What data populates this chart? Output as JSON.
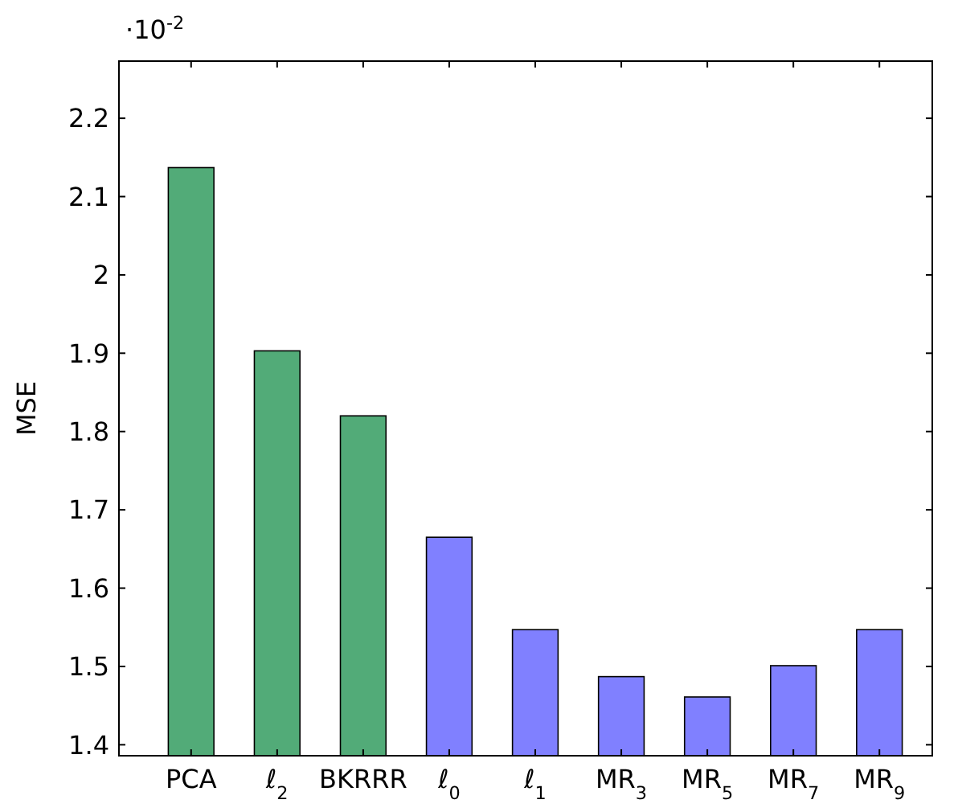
{
  "chart_data": {
    "type": "bar",
    "ylabel": "MSE",
    "categories": [
      "PCA",
      "ℓ$_{2}$",
      "BKRRR",
      "ℓ$_{0}$",
      "ℓ$_{1}$",
      "MR$_{3}$",
      "MR$_{5}$",
      "MR$_{7}$",
      "MR$_{9}$"
    ],
    "values": [
      2.137,
      1.903,
      1.82,
      1.665,
      1.547,
      1.487,
      1.461,
      1.501,
      1.547
    ],
    "colors": [
      "#52ab78",
      "#52ab78",
      "#52ab78",
      "#8080ff",
      "#8080ff",
      "#8080ff",
      "#8080ff",
      "#8080ff",
      "#8080ff"
    ],
    "ylim": [
      1.386,
      2.273
    ],
    "yticks": [
      1.4,
      1.5,
      1.6,
      1.7,
      1.8,
      1.9,
      2,
      2.1,
      2.2
    ],
    "annotations": [
      "·10$^{-2}$"
    ],
    "grid": false
  }
}
